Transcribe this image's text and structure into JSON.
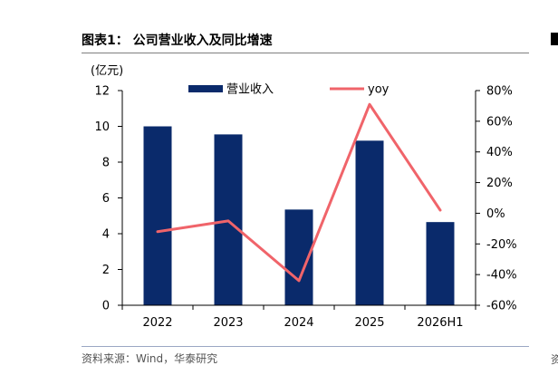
{
  "figure_title": "图表1：  公司营业收入及同比增速",
  "source": "资料来源：Wind，华泰研究",
  "right_edge_glyph": "资",
  "chart_data": {
    "type": "bar",
    "categories": [
      "2022",
      "2023",
      "2024",
      "2025",
      "2026H1"
    ],
    "y_unit_label": "(亿元)",
    "ylim": [
      0,
      12
    ],
    "y_ticks": [
      0,
      2,
      4,
      6,
      8,
      10,
      12
    ],
    "y2lim": [
      -60,
      80
    ],
    "y2_ticks": [
      -60,
      -40,
      -20,
      0,
      20,
      40,
      60,
      80
    ],
    "y2_tick_suffix": "%",
    "series": [
      {
        "name": "营业收入",
        "type": "bar",
        "axis": "left",
        "color": "#0a2a6b",
        "values": [
          10.0,
          9.55,
          5.35,
          9.2,
          4.65
        ]
      },
      {
        "name": "yoy",
        "type": "line",
        "axis": "right",
        "color": "#f0646a",
        "values": [
          -12,
          -5,
          -44,
          71,
          2
        ]
      }
    ],
    "legend_position": "top",
    "grid": false
  }
}
